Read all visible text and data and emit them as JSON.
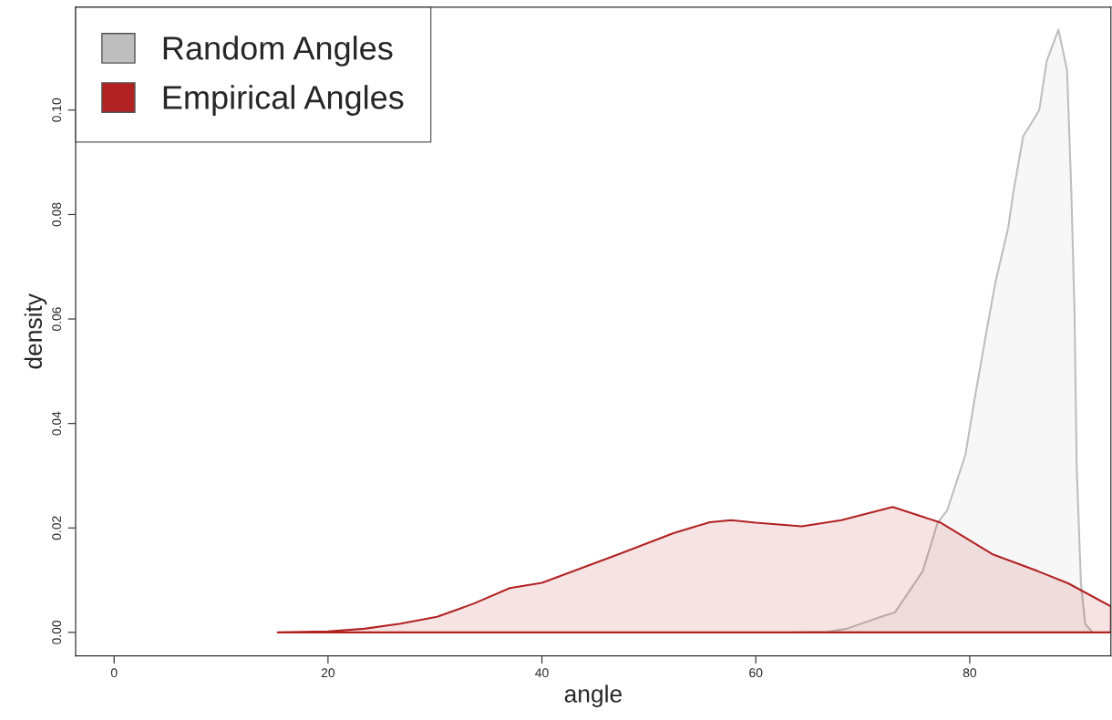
{
  "chart_data": {
    "type": "area",
    "xlabel": "angle",
    "ylabel": "density",
    "xlim": [
      -3.6,
      93.2
    ],
    "ylim": [
      -0.0045,
      0.1197
    ],
    "xticks": [
      0,
      20,
      40,
      60,
      80
    ],
    "yticks": [
      {
        "value": 0,
        "label": "0.00"
      },
      {
        "value": 0.02,
        "label": "0.02"
      },
      {
        "value": 0.04,
        "label": "0.04"
      },
      {
        "value": 0.06,
        "label": "0.06"
      },
      {
        "value": 0.08,
        "label": "0.08"
      },
      {
        "value": 0.1,
        "label": "0.10"
      }
    ],
    "grid": false,
    "legend": "top left",
    "series": [
      {
        "name": "Random Angles",
        "color": "#bebebe",
        "x": [
          63.4,
          66.6,
          68.5,
          71.7,
          73,
          75.6,
          77,
          77.9,
          79.6,
          80.4,
          81.6,
          82.4,
          83.6,
          84.1,
          85,
          85.8,
          86.5,
          87.2,
          88.3,
          89.1,
          89.5,
          89.8,
          90,
          90.4,
          90.8,
          91.5
        ],
        "values": [
          0,
          0.0001,
          0.0007,
          0.003,
          0.0038,
          0.0117,
          0.021,
          0.0234,
          0.034,
          0.044,
          0.058,
          0.067,
          0.0775,
          0.0845,
          0.095,
          0.0976,
          0.1,
          0.1094,
          0.1154,
          0.1077,
          0.0845,
          0.0613,
          0.032,
          0.0094,
          0.0016,
          0
        ]
      },
      {
        "name": "Empirical Angles",
        "color": "#b22222",
        "x": [
          15.3,
          20,
          23.4,
          26.8,
          30.2,
          33.6,
          37,
          40,
          47.2,
          52.3,
          55.7,
          57.7,
          60,
          64.3,
          68,
          72.8,
          77.3,
          82.1,
          86.4,
          89.2,
          93.2
        ],
        "values": [
          0,
          0.0002,
          0.0007,
          0.0017,
          0.003,
          0.0055,
          0.0085,
          0.0095,
          0.015,
          0.019,
          0.0211,
          0.0215,
          0.021,
          0.0203,
          0.0215,
          0.024,
          0.021,
          0.015,
          0.0117,
          0.0094,
          0.005
        ]
      }
    ]
  }
}
